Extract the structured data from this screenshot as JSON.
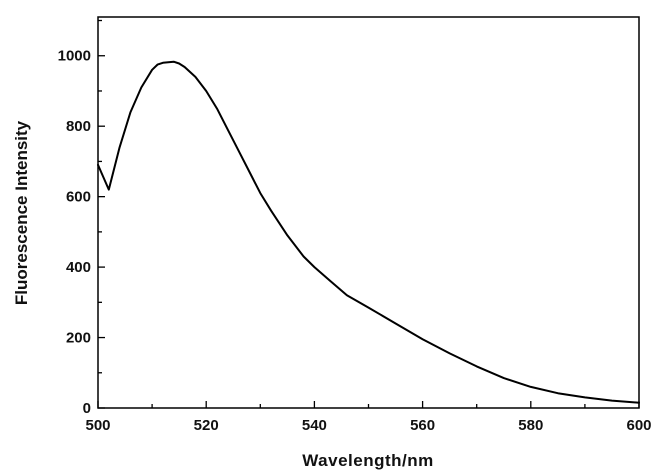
{
  "chart_data": {
    "type": "line",
    "title": "",
    "xlabel": "Wavelength/nm",
    "ylabel": "Fluorescence Intensity",
    "xlim": [
      500,
      600
    ],
    "ylim": [
      0,
      1110
    ],
    "x_ticks": [
      500,
      520,
      540,
      560,
      580,
      600
    ],
    "x_tick_labels": [
      "500",
      "520",
      "540",
      "560",
      "580",
      "600"
    ],
    "y_ticks": [
      0,
      200,
      400,
      600,
      800,
      1000
    ],
    "y_tick_labels": [
      "0",
      "200",
      "400",
      "600",
      "800",
      "1000"
    ],
    "grid": false,
    "legend": false,
    "series": [
      {
        "color": "#000000",
        "x": [
          500,
          502,
          504,
          506,
          508,
          510,
          511,
          512,
          514,
          515,
          516,
          518,
          520,
          522,
          524,
          526,
          528,
          530,
          532,
          535,
          538,
          540,
          543,
          546,
          550,
          555,
          560,
          565,
          570,
          575,
          580,
          585,
          590,
          595,
          600
        ],
        "y": [
          690,
          620,
          740,
          840,
          910,
          960,
          975,
          980,
          983,
          978,
          968,
          940,
          900,
          850,
          790,
          730,
          670,
          610,
          560,
          490,
          430,
          400,
          360,
          320,
          285,
          240,
          195,
          155,
          118,
          85,
          60,
          42,
          30,
          21,
          15
        ]
      }
    ]
  }
}
